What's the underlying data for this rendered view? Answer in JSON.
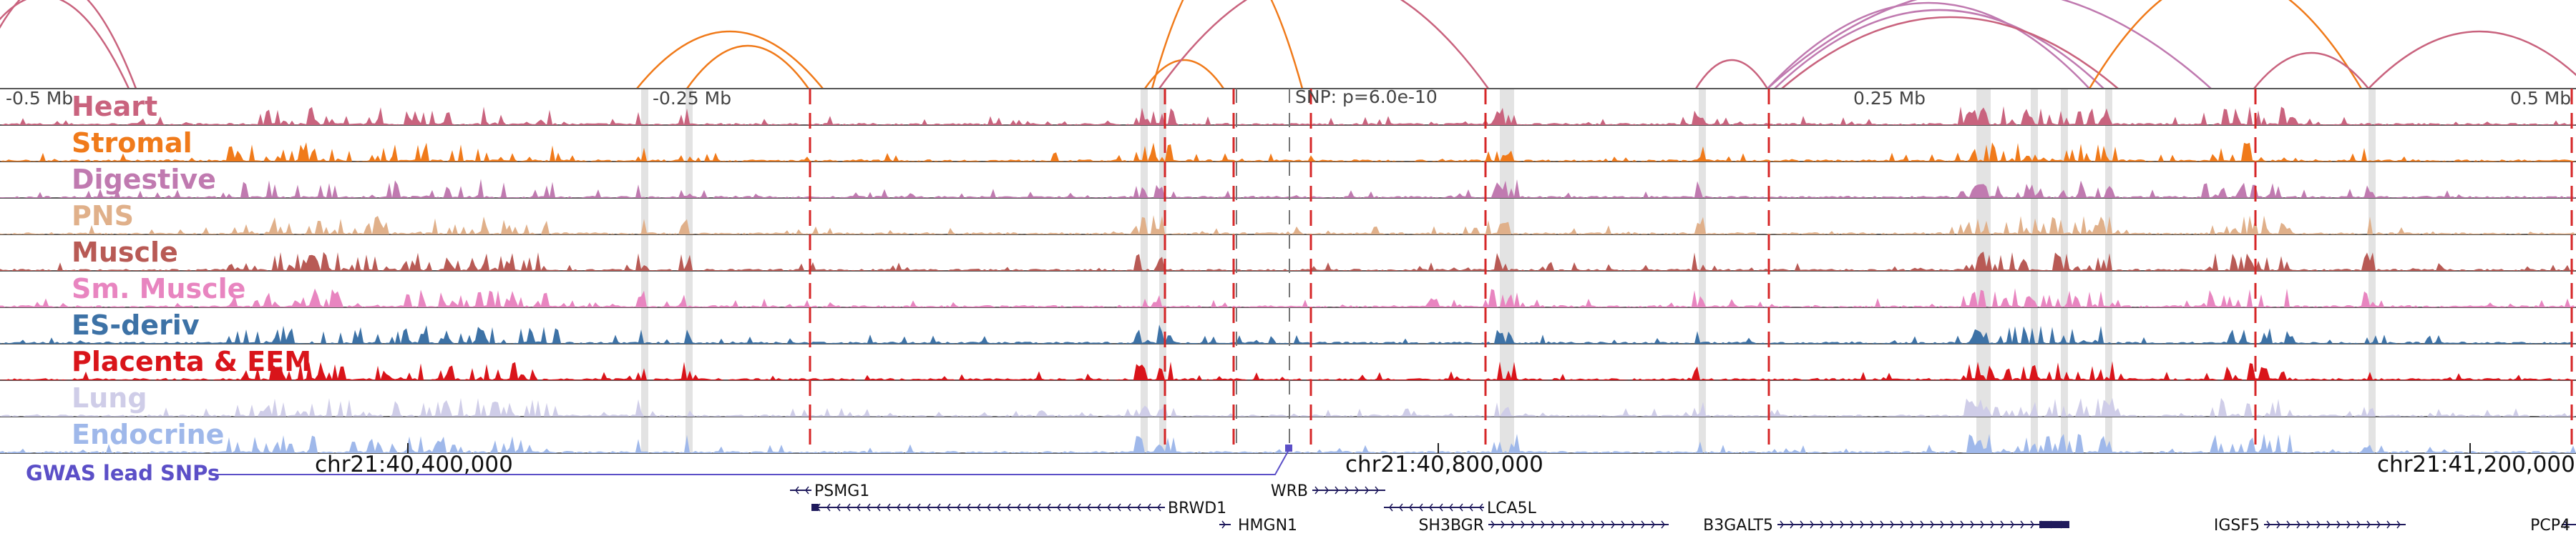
{
  "title": "",
  "scale_labels": [
    "-0.5 Mb",
    "-0.25 Mb",
    "0.25 Mb",
    "0.5 Mb"
  ],
  "snp_label": "SNP: p=6.0e-10",
  "coordinates": [
    "chr21:40,400,000",
    "chr21:40,800,000",
    "chr21:41,200,000"
  ],
  "gwas_label": "GWAS lead SNPs",
  "colors": {
    "gwas": "#5b4fc7",
    "gene": "#1f1a5c",
    "dashed_line": "#d62728",
    "highlight": "#e3e3e3",
    "track_border": "#555555"
  },
  "tracks": [
    {
      "name": "Heart",
      "color": "#c9637e"
    },
    {
      "name": "Stromal",
      "color": "#f07a1a"
    },
    {
      "name": "Digestive",
      "color": "#c07ab0"
    },
    {
      "name": "PNS",
      "color": "#e0b08a"
    },
    {
      "name": "Muscle",
      "color": "#b85a55"
    },
    {
      "name": "Sm. Muscle",
      "color": "#e885c0"
    },
    {
      "name": "ES-deriv",
      "color": "#3d72a6"
    },
    {
      "name": "Placenta & EEM",
      "color": "#d9141a"
    },
    {
      "name": "Lung",
      "color": "#cfcde8"
    },
    {
      "name": "Endocrine",
      "color": "#9fb8ea"
    }
  ],
  "genes": [
    {
      "name": "PSMG1",
      "strand": "-"
    },
    {
      "name": "BRWD1",
      "strand": "-"
    },
    {
      "name": "HMGN1",
      "strand": "+"
    },
    {
      "name": "WRB",
      "strand": "+"
    },
    {
      "name": "LCA5L",
      "strand": "-"
    },
    {
      "name": "SH3BGR",
      "strand": "+"
    },
    {
      "name": "B3GALT5",
      "strand": "+"
    },
    {
      "name": "IGSF5",
      "strand": "+"
    },
    {
      "name": "PCP4",
      "strand": "+"
    }
  ],
  "icons": {
    "gene_direction": "chevron-arrow-icon"
  }
}
